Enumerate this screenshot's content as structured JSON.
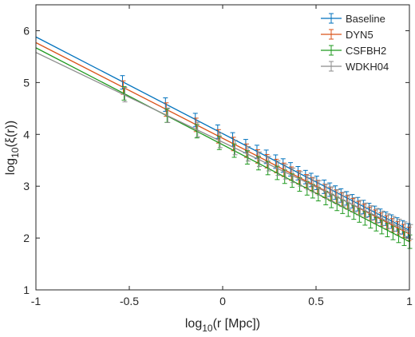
{
  "chart_data": {
    "type": "line",
    "xlabel": "log10(r [Mpc])",
    "ylabel": "log10(ξ(r))",
    "xlim": [
      -1,
      1
    ],
    "ylim": [
      1,
      6.5
    ],
    "xticks": [
      -1,
      -0.5,
      0,
      0.5,
      1
    ],
    "xtick_labels": [
      "-1",
      "-0.5",
      "0",
      "0.5",
      "1"
    ],
    "yticks": [
      1,
      2,
      3,
      4,
      5,
      6
    ],
    "ytick_labels": [
      "1",
      "2",
      "3",
      "4",
      "5",
      "6"
    ],
    "grid": false,
    "legend_position": "top-right",
    "errorbar_x": [
      -0.53,
      -0.3,
      -0.14,
      -0.02,
      0.06,
      0.13,
      0.19,
      0.24,
      0.29,
      0.33,
      0.37,
      0.41,
      0.45,
      0.48,
      0.51,
      0.55,
      0.58,
      0.61,
      0.64,
      0.67,
      0.7,
      0.73,
      0.76,
      0.79,
      0.82,
      0.85,
      0.88,
      0.91,
      0.94,
      0.97,
      1.0
    ],
    "series": [
      {
        "name": "Baseline",
        "color": "#0072BD",
        "line": [
          [
            -1,
            5.88
          ],
          [
            1,
            2.15
          ]
        ],
        "error": 0.13
      },
      {
        "name": "DYN5",
        "color": "#D95319",
        "line": [
          [
            -1,
            5.77
          ],
          [
            1,
            2.08
          ]
        ],
        "error": 0.13
      },
      {
        "name": "CSFBH2",
        "color": "#1F9A1F",
        "line": [
          [
            -1,
            5.67
          ],
          [
            1,
            1.93
          ]
        ],
        "error": 0.13
      },
      {
        "name": "WDKH04",
        "color": "#8C8C8C",
        "line": [
          [
            -1,
            5.58
          ],
          [
            1,
            2.12
          ]
        ],
        "error": 0.14
      }
    ]
  }
}
